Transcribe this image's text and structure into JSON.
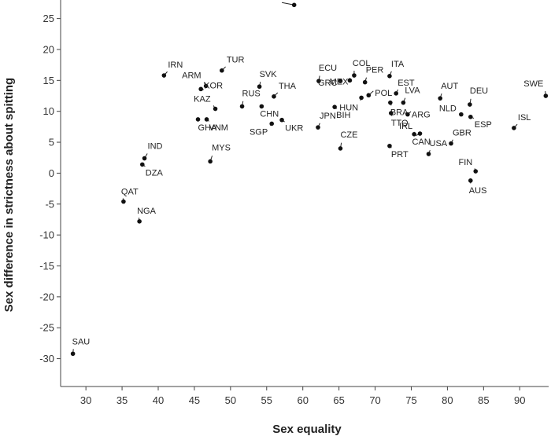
{
  "chart_data": {
    "type": "scatter",
    "title": "",
    "xlabel": "Sex equality",
    "ylabel": "Sex difference in strictness about spitting",
    "xlim": [
      26.5,
      94
    ],
    "ylim": [
      -34.5,
      28
    ],
    "xticks": [
      30,
      35,
      40,
      45,
      50,
      55,
      60,
      65,
      70,
      75,
      80,
      85,
      90
    ],
    "yticks": [
      -30,
      -25,
      -20,
      -15,
      -10,
      -5,
      0,
      5,
      10,
      15,
      20,
      25
    ],
    "grid": false,
    "legend": "none",
    "points": [
      {
        "label": "CHL",
        "x": 58.8,
        "y": 27.2
      },
      {
        "label": "IRN",
        "x": 40.8,
        "y": 15.8
      },
      {
        "label": "TUR",
        "x": 48.8,
        "y": 16.6
      },
      {
        "label": "ARM",
        "x": 46.6,
        "y": 14.1
      },
      {
        "label": "KOR",
        "x": 45.9,
        "y": 13.6
      },
      {
        "label": "KAZ",
        "x": 47.9,
        "y": 10.4
      },
      {
        "label": "GHA",
        "x": 45.5,
        "y": 8.7
      },
      {
        "label": "VNM",
        "x": 46.7,
        "y": 8.7
      },
      {
        "label": "SVK",
        "x": 54.0,
        "y": 14.0
      },
      {
        "label": "THA",
        "x": 56.0,
        "y": 12.4
      },
      {
        "label": "RUS",
        "x": 51.6,
        "y": 10.8
      },
      {
        "label": "CHN",
        "x": 54.3,
        "y": 10.8
      },
      {
        "label": "SGP",
        "x": 55.7,
        "y": 8.0
      },
      {
        "label": "UKR",
        "x": 57.1,
        "y": 8.6
      },
      {
        "label": "ECU",
        "x": 62.2,
        "y": 14.9
      },
      {
        "label": "COL",
        "x": 67.1,
        "y": 15.8
      },
      {
        "label": "GRC",
        "x": 65.2,
        "y": 14.9
      },
      {
        "label": "MEX",
        "x": 66.5,
        "y": 15.0
      },
      {
        "label": "PER",
        "x": 68.6,
        "y": 14.7
      },
      {
        "label": "ITA",
        "x": 72.0,
        "y": 15.7
      },
      {
        "label": "POL",
        "x": 69.1,
        "y": 12.6
      },
      {
        "label": "EST",
        "x": 72.9,
        "y": 12.9
      },
      {
        "label": "HUN",
        "x": 68.1,
        "y": 12.2
      },
      {
        "label": "BIH",
        "x": 64.4,
        "y": 10.7
      },
      {
        "label": "JPN",
        "x": 62.1,
        "y": 7.4
      },
      {
        "label": "BRA",
        "x": 72.1,
        "y": 11.4
      },
      {
        "label": "LVA",
        "x": 73.9,
        "y": 11.4
      },
      {
        "label": "ARG",
        "x": 74.5,
        "y": 9.5
      },
      {
        "label": "TTO",
        "x": 72.2,
        "y": 9.7
      },
      {
        "label": "IRL",
        "x": 75.4,
        "y": 6.3
      },
      {
        "label": "CAN",
        "x": 76.2,
        "y": 6.4
      },
      {
        "label": "USA",
        "x": 77.4,
        "y": 3.1
      },
      {
        "label": "PRT",
        "x": 72.0,
        "y": 4.4
      },
      {
        "label": "CZE",
        "x": 65.2,
        "y": 4.0
      },
      {
        "label": "AUT",
        "x": 79.0,
        "y": 12.1
      },
      {
        "label": "NLD",
        "x": 81.9,
        "y": 9.5
      },
      {
        "label": "DEU",
        "x": 83.1,
        "y": 11.1
      },
      {
        "label": "ESP",
        "x": 83.2,
        "y": 9.1
      },
      {
        "label": "GBR",
        "x": 80.5,
        "y": 4.8
      },
      {
        "label": "FIN",
        "x": 83.9,
        "y": 0.3
      },
      {
        "label": "AUS",
        "x": 83.2,
        "y": -1.2
      },
      {
        "label": "SWE",
        "x": 93.6,
        "y": 12.5
      },
      {
        "label": "ISL",
        "x": 89.2,
        "y": 7.3
      },
      {
        "label": "IND",
        "x": 38.1,
        "y": 2.4
      },
      {
        "label": "DZA",
        "x": 37.8,
        "y": 1.4
      },
      {
        "label": "MYS",
        "x": 47.2,
        "y": 1.9
      },
      {
        "label": "QAT",
        "x": 35.2,
        "y": -4.6
      },
      {
        "label": "NGA",
        "x": 37.4,
        "y": -7.8
      },
      {
        "label": "SAU",
        "x": 28.2,
        "y": -29.2
      }
    ]
  }
}
